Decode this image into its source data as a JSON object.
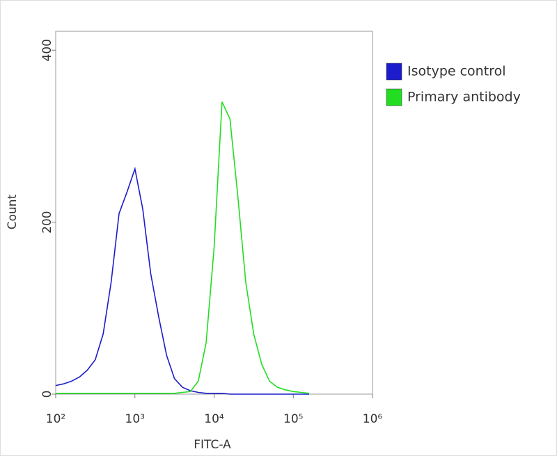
{
  "chart_data": {
    "type": "line",
    "x_label": "FITC-A",
    "y_label": "Count",
    "x": [
      100,
      126,
      158,
      200,
      251,
      316,
      398,
      501,
      631,
      794,
      1000,
      1259,
      1585,
      1995,
      2512,
      3162,
      3981,
      5012,
      6310,
      7943,
      10000,
      12589,
      15849,
      19953,
      25119,
      31623,
      39811,
      50119,
      63096,
      79433,
      100000,
      125893,
      158489
    ],
    "series": [
      {
        "name": "Isotype control",
        "color": "#1c1ccc",
        "values": [
          10,
          12,
          15,
          20,
          28,
          40,
          70,
          130,
          210,
          235,
          262,
          215,
          140,
          90,
          45,
          18,
          8,
          4,
          2,
          1,
          1,
          1,
          0,
          0,
          0,
          0,
          0,
          0,
          0,
          0,
          0,
          0,
          0
        ]
      },
      {
        "name": "Primary antibody",
        "color": "#22dd22",
        "values": [
          1,
          1,
          1,
          1,
          1,
          1,
          1,
          1,
          1,
          1,
          1,
          1,
          1,
          1,
          1,
          1,
          2,
          3,
          15,
          60,
          170,
          340,
          320,
          230,
          130,
          70,
          35,
          15,
          8,
          5,
          3,
          2,
          1
        ]
      }
    ],
    "xscale": "log",
    "xlim": [
      100,
      1000000
    ],
    "xticks": [
      {
        "value": 100,
        "label": "10²"
      },
      {
        "value": 1000,
        "label": "10³"
      },
      {
        "value": 10000,
        "label": "10⁴"
      },
      {
        "value": 100000,
        "label": "10⁵"
      },
      {
        "value": 1000000,
        "label": "10⁶"
      }
    ],
    "ylim": [
      0,
      422
    ],
    "yticks": [
      0,
      200,
      400
    ],
    "legend": "right"
  }
}
